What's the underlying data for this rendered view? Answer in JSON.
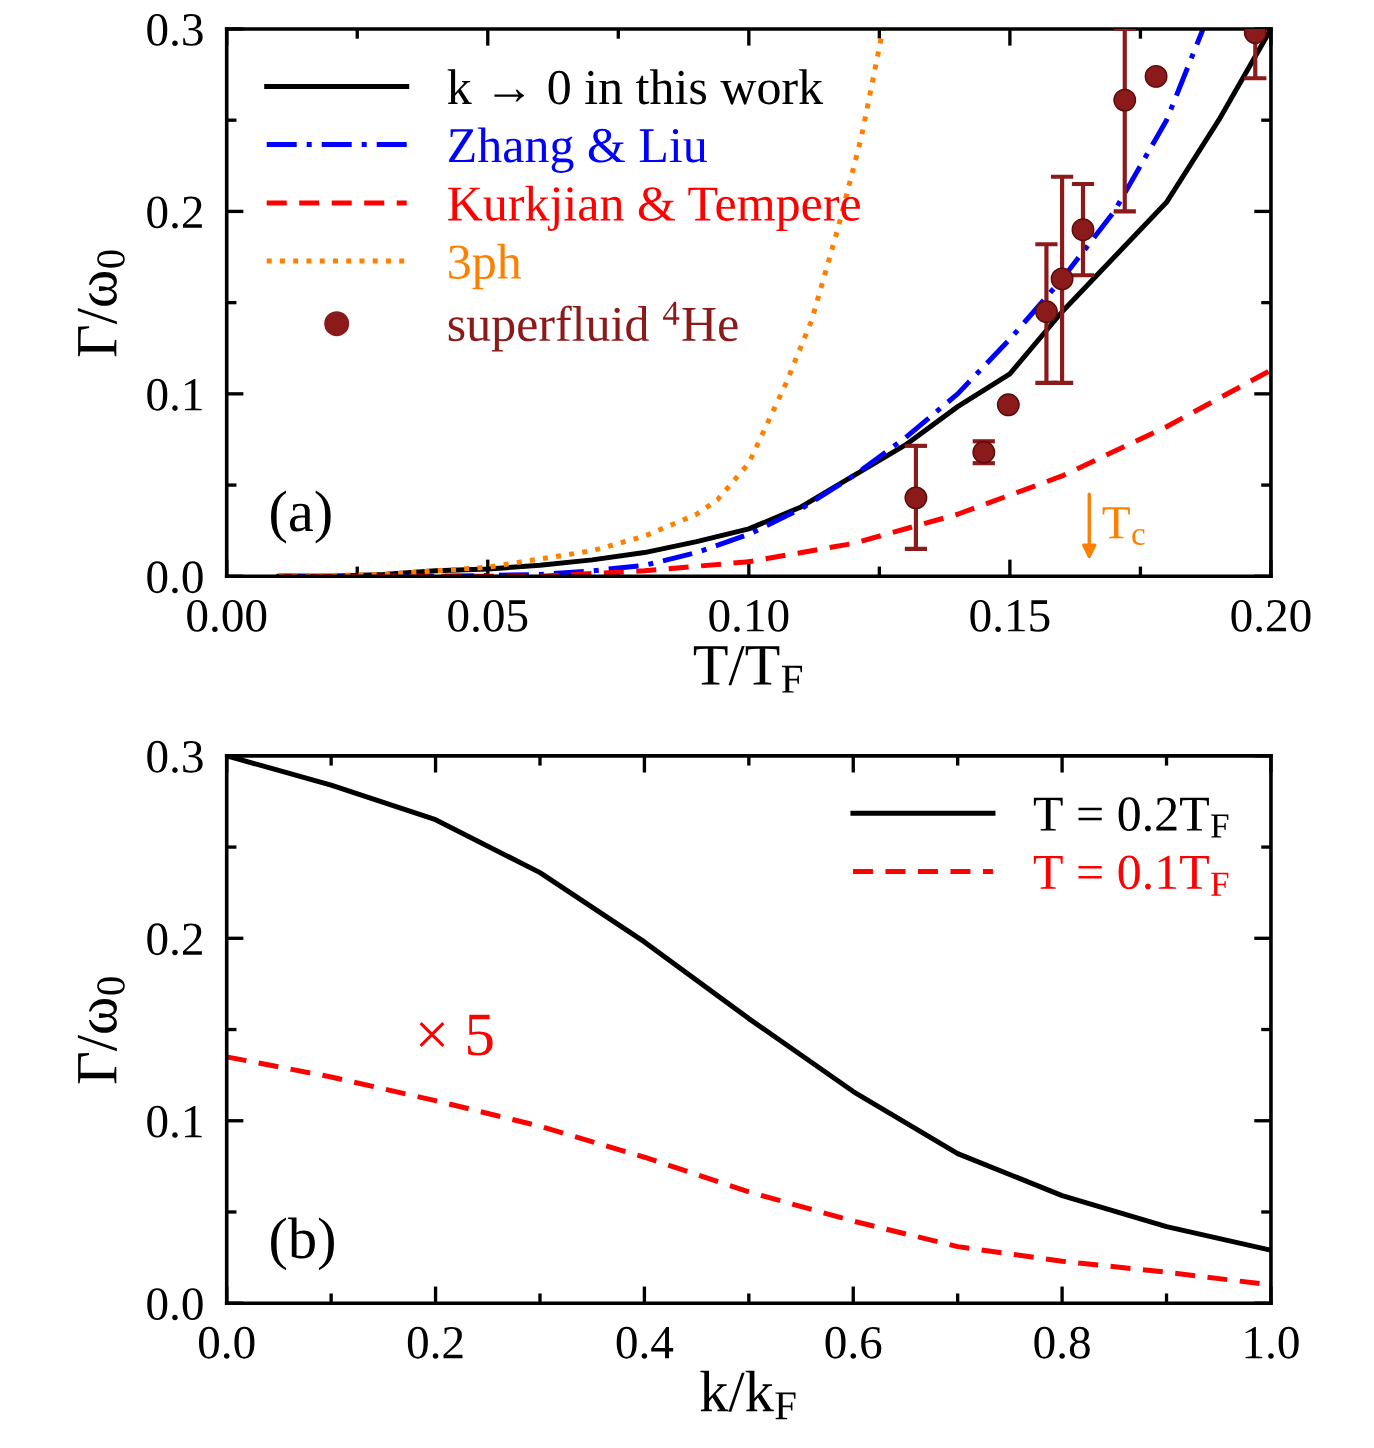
{
  "chart_data": [
    {
      "type": "line",
      "xlabel": "T/T$_{F}$",
      "ylabel": "Γ/ω$_{0}$",
      "xlim": [
        0.0,
        0.2
      ],
      "ylim": [
        0.0,
        0.3
      ],
      "xticks": [
        {
          "value": 0,
          "label": "0.00"
        },
        0.05,
        {
          "value": 0.1,
          "label": "0.10"
        },
        0.15,
        {
          "value": 0.2,
          "label": "0.20"
        }
      ],
      "yticks": [
        {
          "value": 0,
          "label": "0.0"
        },
        0.1,
        0.2,
        0.3
      ],
      "grid": false,
      "legend": "top left",
      "annotations": [
        "(a)",
        "T$_{c}$"
      ],
      "series": [
        {
          "name": "k → 0 in this work",
          "line_style": "solid",
          "color": "#000000",
          "x": [
            0.01,
            0.02,
            0.03,
            0.04,
            0.05,
            0.06,
            0.07,
            0.08,
            0.09,
            0.1,
            0.11,
            0.12,
            0.13,
            0.14,
            0.15,
            0.16,
            0.17,
            0.18,
            0.19,
            0.2
          ],
          "values": [
            0.0,
            0.0,
            0.001,
            0.003,
            0.004,
            0.006,
            0.009,
            0.013,
            0.019,
            0.026,
            0.038,
            0.055,
            0.072,
            0.093,
            0.111,
            0.145,
            0.175,
            0.205,
            0.25,
            0.3
          ]
        },
        {
          "name": "Zhang & Liu",
          "line_style": "dashdot",
          "color": "#0000ff",
          "x": [
            0.01,
            0.04,
            0.06,
            0.07,
            0.08,
            0.09,
            0.1,
            0.11,
            0.12,
            0.13,
            0.14,
            0.15,
            0.16,
            0.17,
            0.18,
            0.187
          ],
          "values": [
            0.0,
            0.0,
            0.001,
            0.003,
            0.006,
            0.013,
            0.023,
            0.037,
            0.055,
            0.076,
            0.1,
            0.13,
            0.163,
            0.2,
            0.25,
            0.3
          ]
        },
        {
          "name": "Kurkjian & Tempere",
          "line_style": "dashed",
          "color": "#ff0000",
          "x": [
            0.01,
            0.06,
            0.08,
            0.1,
            0.12,
            0.14,
            0.16,
            0.18,
            0.2
          ],
          "values": [
            0.0,
            0.0,
            0.003,
            0.008,
            0.018,
            0.034,
            0.055,
            0.082,
            0.113
          ]
        },
        {
          "name": "3ph",
          "line_style": "dotted",
          "color": "#ff8000",
          "x": [
            0.01,
            0.03,
            0.05,
            0.07,
            0.08,
            0.09,
            0.094,
            0.1,
            0.107,
            0.112,
            0.117,
            0.1215,
            0.1257
          ],
          "values": [
            0.0,
            0.001,
            0.005,
            0.014,
            0.022,
            0.034,
            0.042,
            0.062,
            0.105,
            0.14,
            0.19,
            0.24,
            0.3
          ]
        },
        {
          "name": "superfluid $^{4}$He",
          "type": "scatter",
          "marker": "circle",
          "color": "#8b1a1a",
          "x": [
            0.132,
            0.145,
            0.1497,
            0.157,
            0.16,
            0.164,
            0.172,
            0.178,
            0.197
          ],
          "values": [
            0.043,
            0.068,
            0.094,
            0.145,
            0.163,
            0.19,
            0.261,
            0.274,
            0.298
          ],
          "errors": [
            [
              0.015,
              0.0715
            ],
            [
              0.062,
              0.074
            ],
            null,
            [
              0.106,
              0.182
            ],
            [
              0.106,
              0.219
            ],
            [
              0.165,
              0.215
            ],
            [
              0.2,
              0.3
            ],
            null,
            [
              0.273,
              0.3
            ]
          ]
        }
      ]
    },
    {
      "type": "line",
      "xlabel": "k/k$_{F}$",
      "ylabel": "Γ/ω$_{0}$",
      "xlim": [
        0.0,
        1.0
      ],
      "ylim": [
        0.0,
        0.3
      ],
      "xticks": [
        {
          "value": 0,
          "label": "0.0"
        },
        0.2,
        0.4,
        0.6,
        0.8,
        {
          "value": 1,
          "label": "1.0"
        }
      ],
      "yticks": [
        {
          "value": 0,
          "label": "0.0"
        },
        0.1,
        0.2,
        0.3
      ],
      "grid": false,
      "legend": "top right",
      "annotations": [
        "(b)",
        "× 5"
      ],
      "series": [
        {
          "name": "T = 0.2T$_{F}$",
          "line_style": "solid",
          "color": "#000000",
          "x": [
            0.0,
            0.1,
            0.2,
            0.3,
            0.4,
            0.5,
            0.6,
            0.7,
            0.8,
            0.9,
            1.0
          ],
          "values": [
            0.3,
            0.284,
            0.265,
            0.236,
            0.198,
            0.156,
            0.116,
            0.082,
            0.059,
            0.042,
            0.029
          ]
        },
        {
          "name": "T = 0.1T$_{F}$",
          "line_style": "dashed",
          "color": "#ff0000",
          "x": [
            0.0,
            0.1,
            0.2,
            0.3,
            0.4,
            0.5,
            0.6,
            0.7,
            0.8,
            0.9,
            1.0
          ],
          "values": [
            0.135,
            0.124,
            0.111,
            0.097,
            0.08,
            0.061,
            0.045,
            0.031,
            0.023,
            0.017,
            0.01
          ]
        }
      ]
    }
  ]
}
